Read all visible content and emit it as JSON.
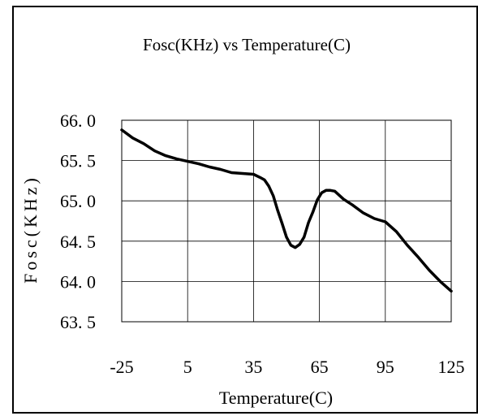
{
  "chart_data": {
    "type": "line",
    "title": "Fosc(KHz) vs Temperature(C)",
    "xlabel": "Temperature(C)",
    "ylabel": "Fosc(KHz)",
    "xlim": [
      -25,
      125
    ],
    "ylim": [
      63.5,
      66.0
    ],
    "x_ticks": [
      -25,
      5,
      35,
      65,
      95,
      125
    ],
    "x_tick_labels": [
      "-25",
      "5",
      "35",
      "65",
      "95",
      "125"
    ],
    "y_ticks": [
      66.0,
      65.5,
      65.0,
      64.5,
      64.0,
      63.5
    ],
    "y_tick_labels": [
      "66. 0",
      "65. 5",
      "65. 0",
      "64. 5",
      "64. 0",
      "63. 5"
    ],
    "grid": true,
    "legend": "none",
    "series": [
      {
        "color": "#000000",
        "x": [
          -25,
          -20,
          -15,
          -10,
          -5,
          0,
          5,
          10,
          15,
          20,
          25,
          30,
          35,
          38,
          40,
          42,
          44,
          46,
          48,
          50,
          52,
          54,
          56,
          58,
          60,
          62,
          64,
          66,
          68,
          70,
          72,
          74,
          76,
          80,
          85,
          90,
          95,
          100,
          105,
          110,
          115,
          120,
          125
        ],
        "y": [
          65.88,
          65.78,
          65.71,
          65.62,
          65.56,
          65.52,
          65.49,
          65.46,
          65.42,
          65.39,
          65.35,
          65.34,
          65.33,
          65.29,
          65.26,
          65.18,
          65.06,
          64.88,
          64.72,
          64.55,
          64.45,
          64.42,
          64.46,
          64.55,
          64.73,
          64.86,
          65.01,
          65.1,
          65.13,
          65.13,
          65.12,
          65.07,
          65.02,
          64.95,
          64.85,
          64.78,
          64.74,
          64.62,
          64.45,
          64.3,
          64.14,
          64.0,
          63.88
        ]
      }
    ]
  }
}
